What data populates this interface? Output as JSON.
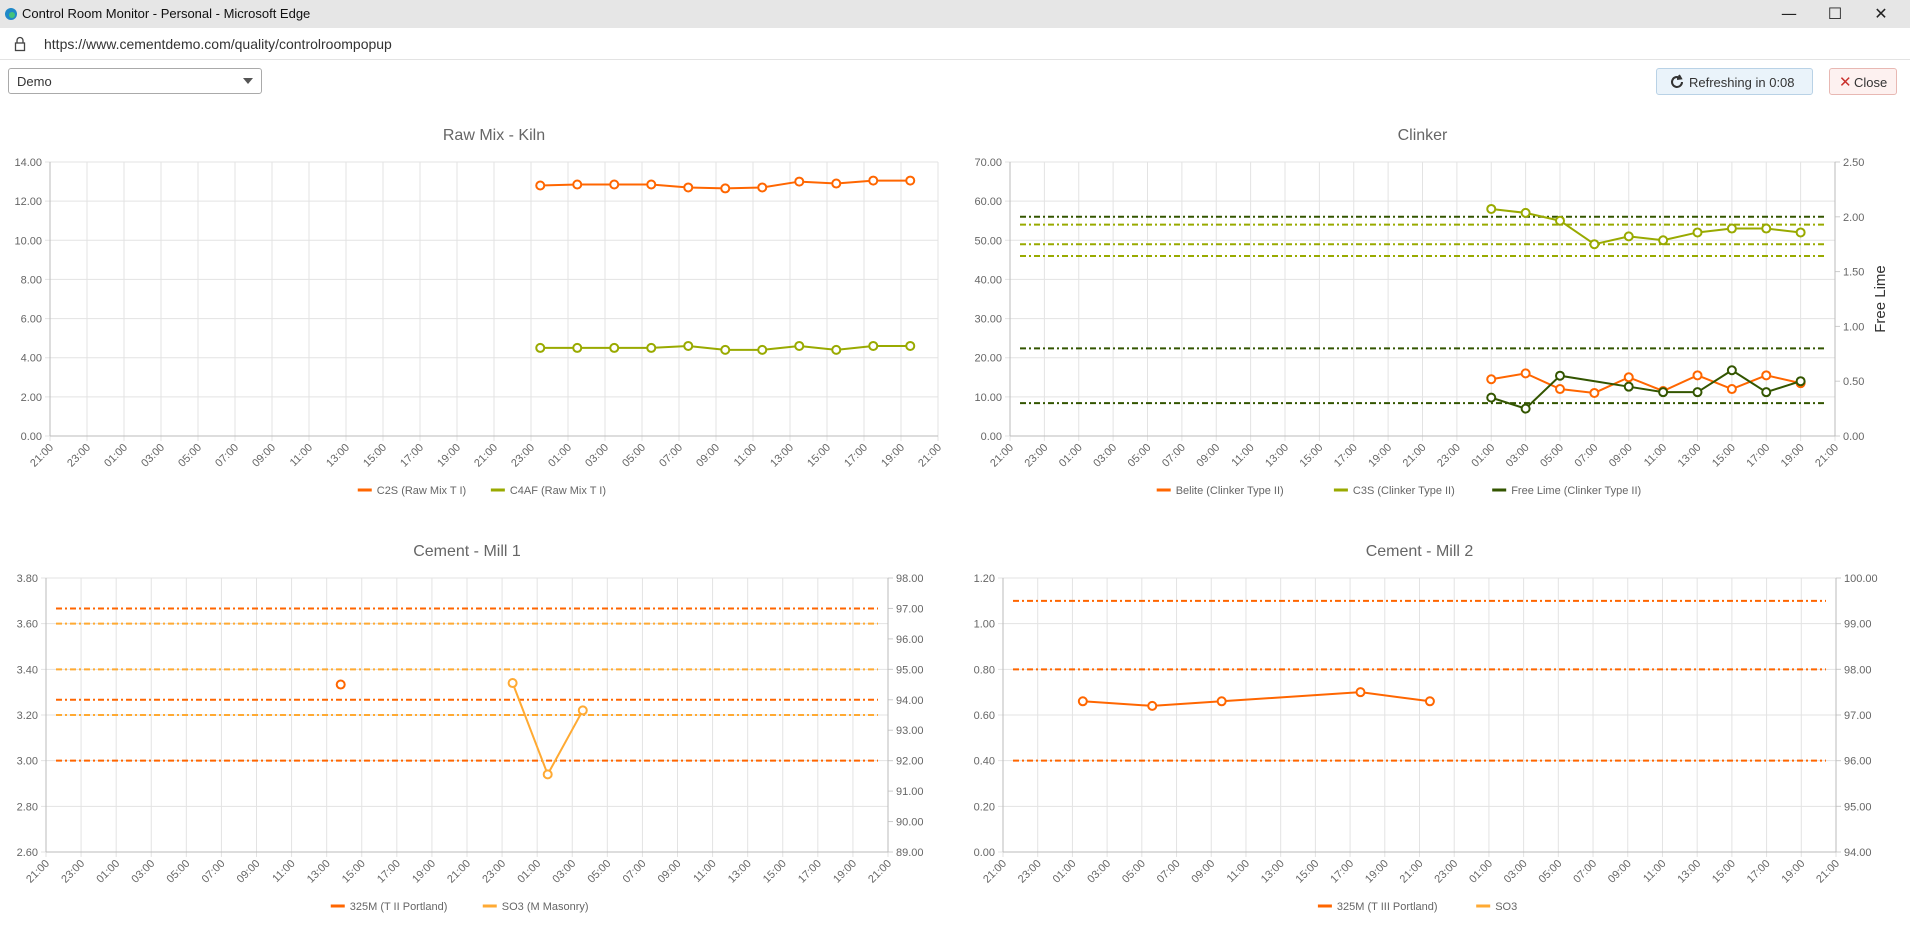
{
  "window": {
    "title": "Control Room Monitor - Personal - Microsoft Edge",
    "minimize_icon": "minimize-icon",
    "maximize_icon": "maximize-icon",
    "close_icon": "close-icon"
  },
  "address": {
    "url": "https://www.cementdemo.com/quality/controlroompopup"
  },
  "toolbar": {
    "plant_select": "Demo",
    "refresh_label": "Refreshing in 0:08",
    "close_label": "Close"
  },
  "colors": {
    "orange": "#ff6600",
    "olive": "#99aa00",
    "dark_green": "#335500",
    "yellow_orange": "#ffaa33"
  },
  "chart_data": [
    {
      "id": "raw_mix_kiln",
      "type": "line",
      "title": "Raw Mix - Kiln",
      "x_labels": [
        "21:00",
        "23:00",
        "01:00",
        "03:00",
        "05:00",
        "07:00",
        "09:00",
        "11:00",
        "13:00",
        "15:00",
        "17:00",
        "19:00",
        "21:00",
        "23:00",
        "01:00",
        "03:00",
        "05:00",
        "07:00",
        "09:00",
        "11:00",
        "13:00",
        "15:00",
        "17:00",
        "19:00",
        "21:00"
      ],
      "y_ticks": [
        "0.00",
        "2.00",
        "4.00",
        "6.00",
        "8.00",
        "10.00",
        "12.00",
        "14.00"
      ],
      "ylim": [
        0,
        14
      ],
      "series": [
        {
          "name": "C2S (Raw Mix T I)",
          "color": "#ff6600",
          "points": [
            [
              13.25,
              12.8
            ],
            [
              14.25,
              12.85
            ],
            [
              15.25,
              12.85
            ],
            [
              16.25,
              12.85
            ],
            [
              17.25,
              12.7
            ],
            [
              18.25,
              12.65
            ],
            [
              19.25,
              12.7
            ],
            [
              20.25,
              13.0
            ],
            [
              21.25,
              12.9
            ],
            [
              22.25,
              13.05
            ],
            [
              23.25,
              13.05
            ]
          ]
        },
        {
          "name": "C4AF (Raw Mix T I)",
          "color": "#99aa00",
          "points": [
            [
              13.25,
              4.5
            ],
            [
              14.25,
              4.5
            ],
            [
              15.25,
              4.5
            ],
            [
              16.25,
              4.5
            ],
            [
              17.25,
              4.6
            ],
            [
              18.25,
              4.4
            ],
            [
              19.25,
              4.4
            ],
            [
              20.25,
              4.6
            ],
            [
              21.25,
              4.4
            ],
            [
              22.25,
              4.6
            ],
            [
              23.25,
              4.6
            ]
          ]
        }
      ]
    },
    {
      "id": "clinker",
      "type": "line",
      "title": "Clinker",
      "x_labels": [
        "21:00",
        "23:00",
        "01:00",
        "03:00",
        "05:00",
        "07:00",
        "09:00",
        "11:00",
        "13:00",
        "15:00",
        "17:00",
        "19:00",
        "21:00",
        "23:00",
        "01:00",
        "03:00",
        "05:00",
        "07:00",
        "09:00",
        "11:00",
        "13:00",
        "15:00",
        "17:00",
        "19:00",
        "21:00"
      ],
      "y_ticks": [
        "0.00",
        "10.00",
        "20.00",
        "30.00",
        "40.00",
        "50.00",
        "60.00",
        "70.00"
      ],
      "ylim": [
        0,
        70
      ],
      "y2_ticks": [
        "0.00",
        "0.50",
        "1.00",
        "1.50",
        "2.00",
        "2.50"
      ],
      "y2lim": [
        0,
        2.5
      ],
      "y2_title": "Free Lime",
      "reference_lines": [
        {
          "axis": "left",
          "value": 56,
          "color": "#335500"
        },
        {
          "axis": "left",
          "value": 54,
          "color": "#99aa00"
        },
        {
          "axis": "left",
          "value": 49,
          "color": "#99aa00"
        },
        {
          "axis": "left",
          "value": 46,
          "color": "#99aa00"
        },
        {
          "axis": "right",
          "value": 0.8,
          "color": "#335500"
        },
        {
          "axis": "right",
          "value": 0.3,
          "color": "#335500"
        }
      ],
      "series": [
        {
          "name": "Belite (Clinker Type II)",
          "color": "#ff6600",
          "axis": "left",
          "points": [
            [
              14,
              14.5
            ],
            [
              15,
              16
            ],
            [
              16,
              12
            ],
            [
              17,
              11
            ],
            [
              18,
              15
            ],
            [
              19,
              11.5
            ],
            [
              20,
              15.5
            ],
            [
              21,
              12
            ],
            [
              22,
              15.5
            ],
            [
              23,
              13.5
            ]
          ]
        },
        {
          "name": "C3S (Clinker Type II)",
          "color": "#99aa00",
          "axis": "left",
          "points": [
            [
              14,
              58
            ],
            [
              15,
              57
            ],
            [
              16,
              55
            ],
            [
              17,
              49
            ],
            [
              18,
              51
            ],
            [
              19,
              50
            ],
            [
              20,
              52
            ],
            [
              21,
              53
            ],
            [
              22,
              53
            ],
            [
              23,
              52
            ]
          ]
        },
        {
          "name": "Free Lime (Clinker Type II)",
          "color": "#335500",
          "axis": "right",
          "points": [
            [
              14,
              0.35
            ],
            [
              15,
              0.25
            ],
            [
              16,
              0.55
            ],
            [
              18,
              0.45
            ],
            [
              19,
              0.4
            ],
            [
              20,
              0.4
            ],
            [
              21,
              0.6
            ],
            [
              22,
              0.4
            ],
            [
              23,
              0.5
            ]
          ]
        }
      ]
    },
    {
      "id": "cement_mill_1",
      "type": "line",
      "title": "Cement - Mill 1",
      "x_labels": [
        "21:00",
        "23:00",
        "01:00",
        "03:00",
        "05:00",
        "07:00",
        "09:00",
        "11:00",
        "13:00",
        "15:00",
        "17:00",
        "19:00",
        "21:00",
        "23:00",
        "01:00",
        "03:00",
        "05:00",
        "07:00",
        "09:00",
        "11:00",
        "13:00",
        "15:00",
        "17:00",
        "19:00",
        "21:00"
      ],
      "y_ticks": [
        "2.60",
        "2.80",
        "3.00",
        "3.20",
        "3.40",
        "3.60",
        "3.80"
      ],
      "ylim": [
        2.6,
        3.8
      ],
      "y2_ticks": [
        "89.00",
        "90.00",
        "91.00",
        "92.00",
        "93.00",
        "94.00",
        "95.00",
        "96.00",
        "97.00",
        "98.00"
      ],
      "y2lim": [
        89,
        98
      ],
      "reference_lines": [
        {
          "axis": "right",
          "value": 97.0,
          "color": "#ff6600"
        },
        {
          "axis": "right",
          "value": 94.0,
          "color": "#ff6600"
        },
        {
          "axis": "right",
          "value": 92.0,
          "color": "#ff6600"
        },
        {
          "axis": "left",
          "value": 3.6,
          "color": "#ffaa33"
        },
        {
          "axis": "left",
          "value": 3.4,
          "color": "#ffaa33"
        },
        {
          "axis": "left",
          "value": 3.2,
          "color": "#ffaa33"
        }
      ],
      "series": [
        {
          "name": "325M (T II Portland)",
          "color": "#ff6600",
          "axis": "right",
          "points": [
            [
              8.4,
              94.5
            ]
          ]
        },
        {
          "name": "SO3 (M Masonry)",
          "color": "#ffaa33",
          "axis": "left",
          "points": [
            [
              13.3,
              3.34
            ],
            [
              14.3,
              2.94
            ],
            [
              15.3,
              3.22
            ]
          ]
        }
      ]
    },
    {
      "id": "cement_mill_2",
      "type": "line",
      "title": "Cement - Mill 2",
      "x_labels": [
        "21:00",
        "23:00",
        "01:00",
        "03:00",
        "05:00",
        "07:00",
        "09:00",
        "11:00",
        "13:00",
        "15:00",
        "17:00",
        "19:00",
        "21:00",
        "23:00",
        "01:00",
        "03:00",
        "05:00",
        "07:00",
        "09:00",
        "11:00",
        "13:00",
        "15:00",
        "17:00",
        "19:00",
        "21:00"
      ],
      "y_ticks": [
        "0.00",
        "0.20",
        "0.40",
        "0.60",
        "0.80",
        "1.00",
        "1.20"
      ],
      "ylim": [
        0,
        1.2
      ],
      "y2_ticks": [
        "94.00",
        "95.00",
        "96.00",
        "97.00",
        "98.00",
        "99.00",
        "100.00"
      ],
      "y2lim": [
        94,
        100
      ],
      "reference_lines": [
        {
          "axis": "right",
          "value": 99.5,
          "color": "#ff6600"
        },
        {
          "axis": "right",
          "value": 98.0,
          "color": "#ff6600"
        },
        {
          "axis": "right",
          "value": 96.0,
          "color": "#ff6600"
        }
      ],
      "series": [
        {
          "name": "325M (T III Portland)",
          "color": "#ff6600",
          "axis": "left",
          "points": [
            [
              2.3,
              0.66
            ],
            [
              4.3,
              0.64
            ],
            [
              6.3,
              0.66
            ],
            [
              10.3,
              0.7
            ],
            [
              12.3,
              0.66
            ]
          ]
        },
        {
          "name": "SO3",
          "color": "#ffaa33",
          "axis": "left",
          "points": []
        }
      ]
    }
  ]
}
